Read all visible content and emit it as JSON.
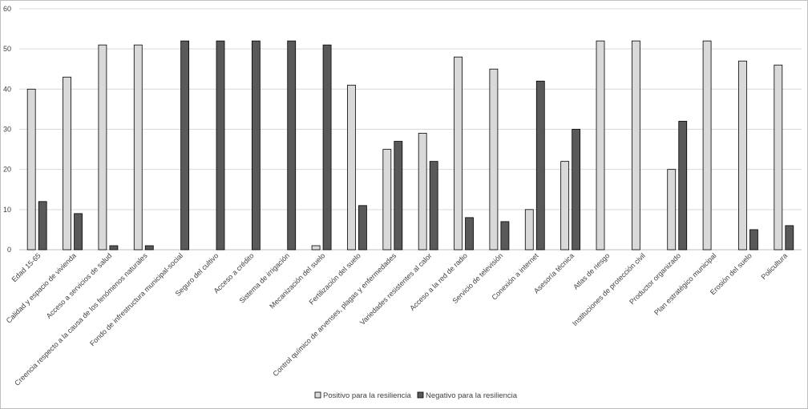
{
  "chart_data": {
    "type": "bar",
    "title": "",
    "xlabel": "",
    "ylabel": "",
    "ylim": [
      0,
      60
    ],
    "yticks": [
      0,
      10,
      20,
      30,
      40,
      50,
      60
    ],
    "grid": true,
    "legend_position": "bottom",
    "categories": [
      "Edad 15-65",
      "Calidad y espacio de vivienda",
      "Acceso a servicios de salud",
      "Creencia respecto a la causa de los fenómenos naturales",
      "Fondo de infrestructura municipal-social",
      "Seguro del cultivo",
      "Acceso a crédito",
      "Sistema de irrigación",
      "Mecanización del suelo",
      "Fertilización del suelo",
      "Control químico de arvenses, plagas y enfermedades",
      "Variedades resistentes al calor",
      "Acceso a la red de radio",
      "Servicio de televisión",
      "Conexión a internet",
      "Asesoría técnica",
      "Atlas de riesgo",
      "Instituciones de protección civil",
      "Productor organizado",
      "Plan estratégico municipal",
      "Erosión del suelo",
      "Policultura"
    ],
    "series": [
      {
        "name": "Positivo para la resiliencia",
        "color": "#d9d9d9",
        "values": [
          40,
          43,
          51,
          51,
          0,
          0,
          0,
          0,
          1,
          41,
          25,
          29,
          48,
          45,
          10,
          22,
          52,
          52,
          20,
          52,
          47,
          46
        ]
      },
      {
        "name": "Negativo para la resiliencia",
        "color": "#595959",
        "values": [
          12,
          9,
          1,
          1,
          52,
          52,
          52,
          52,
          51,
          11,
          27,
          22,
          8,
          7,
          42,
          30,
          0,
          0,
          32,
          0,
          5,
          6
        ]
      }
    ]
  },
  "colors": {
    "grid": "#d9d9d9",
    "axis": "#bfbfbf",
    "bar_outline": "#000000"
  }
}
